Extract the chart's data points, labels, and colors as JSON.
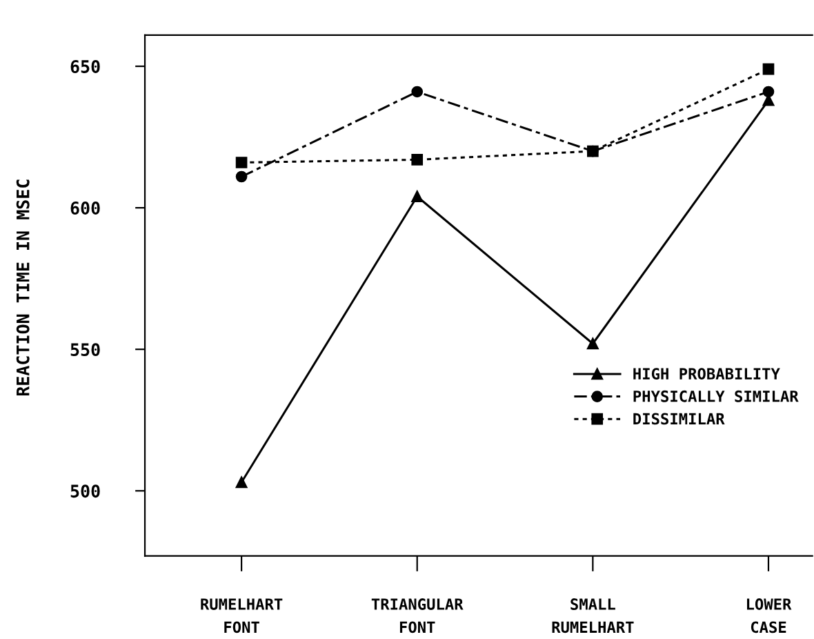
{
  "chart_data": {
    "type": "line",
    "ylabel": "REACTION TIME IN MSEC",
    "categories": [
      "RUMELHART\nFONT",
      "TRIANGULAR\nFONT",
      "SMALL\nRUMELHART",
      "LOWER\nCASE"
    ],
    "series": [
      {
        "name": "HIGH PROBABILITY",
        "color": "#000000",
        "marker": "triangle",
        "line_style": "solid",
        "values": [
          503,
          604,
          552,
          638
        ]
      },
      {
        "name": "PHYSICALLY SIMILAR",
        "color": "#000000",
        "marker": "circle",
        "line_style": "dashed",
        "values": [
          611,
          641,
          620,
          641
        ]
      },
      {
        "name": "DISSIMILAR",
        "color": "#000000",
        "marker": "square",
        "line_style": "dotted",
        "values": [
          616,
          617,
          620,
          649
        ]
      }
    ],
    "ylim": [
      477,
      661
    ],
    "yticks": [
      500,
      550,
      600,
      650
    ],
    "grid": false,
    "legend": "bottom right"
  }
}
